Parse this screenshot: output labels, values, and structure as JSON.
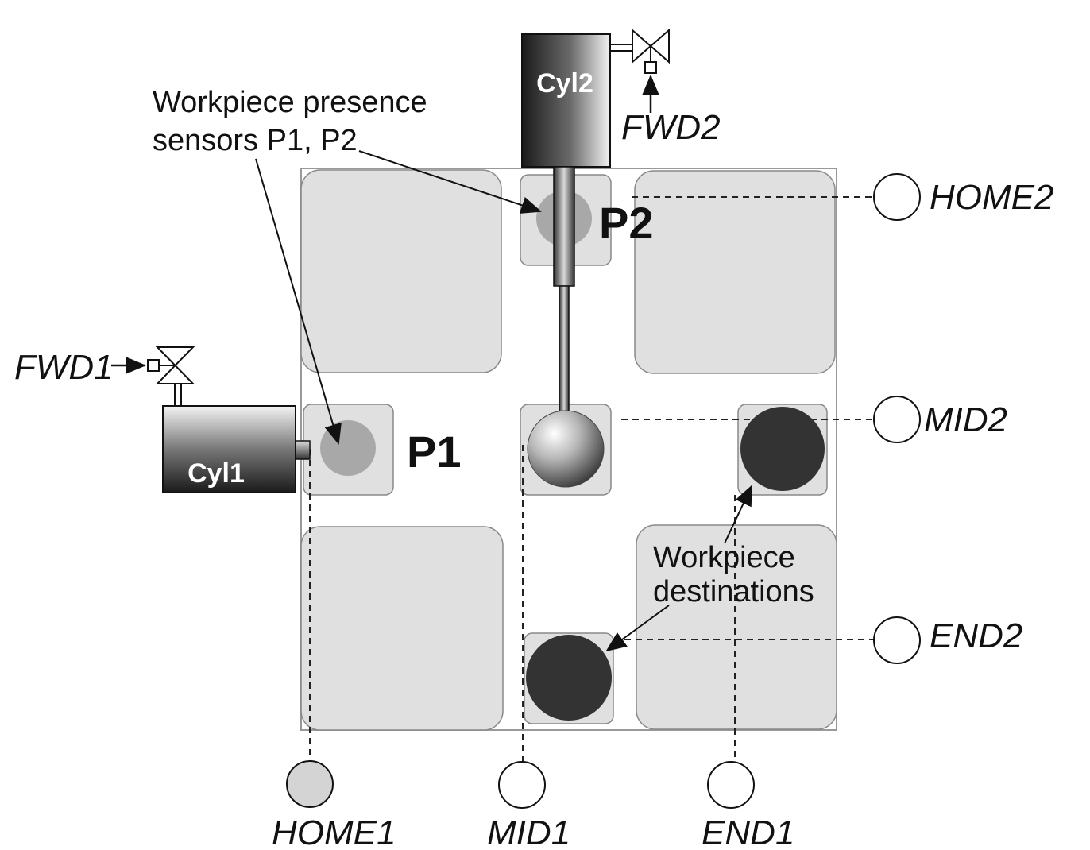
{
  "cylinders": {
    "cyl1": {
      "label": "Cyl1",
      "valve_signal": "FWD1"
    },
    "cyl2": {
      "label": "Cyl2",
      "valve_signal": "FWD2"
    }
  },
  "sensors": {
    "p1": "P1",
    "p2": "P2"
  },
  "annotations": {
    "presence_line1": "Workpiece presence",
    "presence_line2": "sensors P1, P2",
    "dest_line1": "Workpiece",
    "dest_line2": "destinations"
  },
  "limit_switches": {
    "home1": "HOME1",
    "mid1": "MID1",
    "end1": "END1",
    "home2": "HOME2",
    "mid2": "MID2",
    "end2": "END2"
  },
  "colors": {
    "panel": "#e0e0e0",
    "sensor": "#a8a8a8",
    "workpiece_dest": "#333333",
    "home1_active": "#d4d4d4"
  }
}
